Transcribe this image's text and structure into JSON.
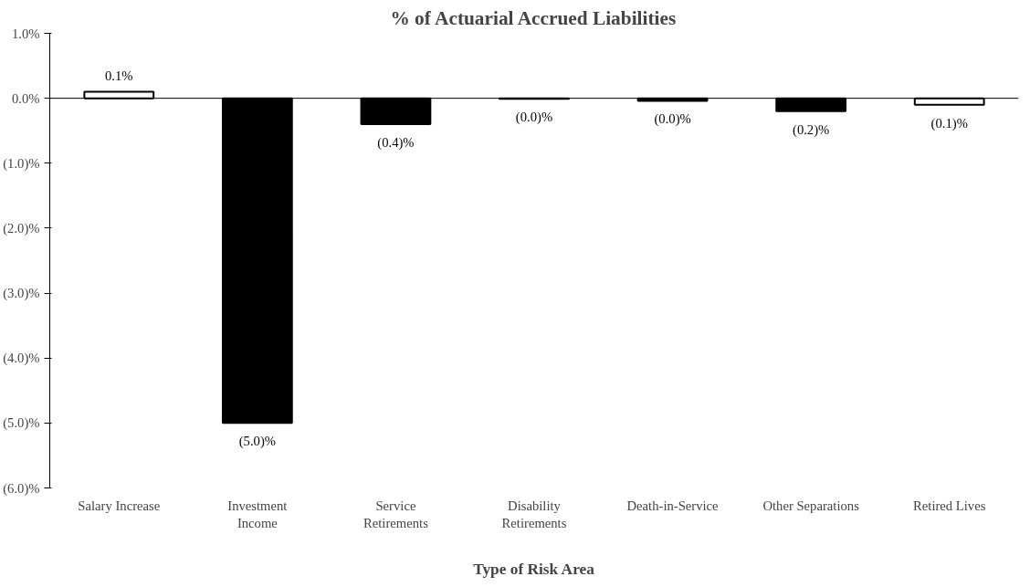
{
  "chart_data": {
    "type": "bar",
    "title": "% of Actuarial Accrued Liabilities",
    "xlabel": "Type of Risk Area",
    "categories": [
      "Salary Increase",
      "Investment\nIncome",
      "Service\nRetirements",
      "Disability\nRetirements",
      "Death-in-Service",
      "Other Separations",
      "Retired Lives"
    ],
    "values": [
      0.1,
      -5.0,
      -0.4,
      -0.01,
      -0.04,
      -0.2,
      -0.1
    ],
    "colors": [
      "#ffffff",
      "#000000",
      "#000000",
      "#000000",
      "#000000",
      "#000000",
      "#ffffff"
    ],
    "value_labels": [
      "0.1%",
      "(5.0)%",
      "(0.4)%",
      "(0.0)%",
      "(0.0)%",
      "(0.2)%",
      "(0.1)%"
    ],
    "ylim": [
      -6,
      1
    ],
    "yticks": [
      {
        "value": 1,
        "label": "1.0%"
      },
      {
        "value": 0,
        "label": "0.0%"
      },
      {
        "value": -1,
        "label": "(1.0)%"
      },
      {
        "value": -2,
        "label": "(2.0)%"
      },
      {
        "value": -3,
        "label": "(3.0)%"
      },
      {
        "value": -4,
        "label": "(4.0)%"
      },
      {
        "value": -5,
        "label": "(5.0)%"
      },
      {
        "value": -6,
        "label": "(6.0)%"
      }
    ],
    "ref_lines": [
      {
        "axis": "y",
        "value": 0,
        "color": "#000000"
      }
    ],
    "grid": false
  }
}
